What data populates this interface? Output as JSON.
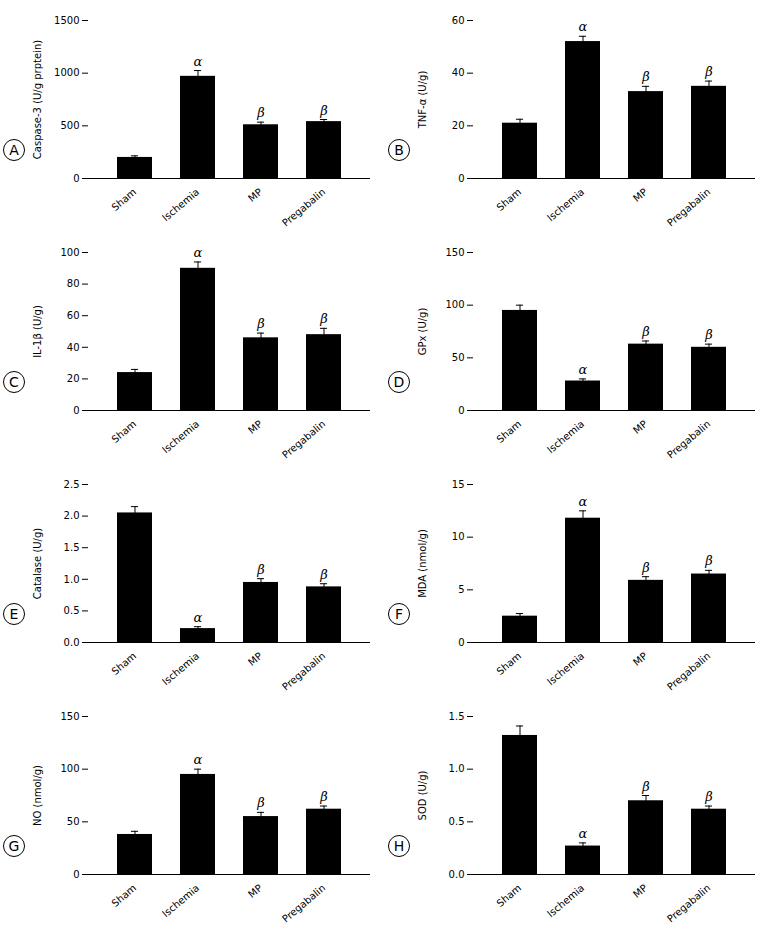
{
  "chart_data": [
    {
      "type": "bar",
      "title": "A",
      "ylabel": "Caspase-3 (U/g prptein)",
      "categories": [
        "Sham",
        "Ischemia",
        "MP",
        "Pregabalin"
      ],
      "values": [
        200,
        970,
        510,
        540
      ],
      "errors": [
        15,
        55,
        25,
        20
      ],
      "annotations": [
        {
          "category": "Ischemia",
          "text": "α"
        },
        {
          "category": "MP",
          "text": "β"
        },
        {
          "category": "Pregabalin",
          "text": "β"
        }
      ],
      "color": "#000000",
      "ylim": [
        0,
        1500
      ],
      "yticks": [
        0,
        500,
        1000,
        1500
      ],
      "grid": false
    },
    {
      "type": "bar",
      "title": "B",
      "ylabel": "TNF-α (U/g)",
      "categories": [
        "Sham",
        "Ischemia",
        "MP",
        "Pregabalin"
      ],
      "values": [
        21,
        52,
        33,
        35
      ],
      "errors": [
        1.5,
        2,
        2,
        2
      ],
      "annotations": [
        {
          "category": "Ischemia",
          "text": "α"
        },
        {
          "category": "MP",
          "text": "β"
        },
        {
          "category": "Pregabalin",
          "text": "β"
        }
      ],
      "color": "#000000",
      "ylim": [
        0,
        60
      ],
      "yticks": [
        0,
        20,
        40,
        60
      ],
      "grid": false
    },
    {
      "type": "bar",
      "title": "C",
      "ylabel": "IL-1β (U/g)",
      "categories": [
        "Sham",
        "Ischemia",
        "MP",
        "Pregabalin"
      ],
      "values": [
        24,
        90,
        46,
        48
      ],
      "errors": [
        2,
        4,
        3,
        4
      ],
      "annotations": [
        {
          "category": "Ischemia",
          "text": "α"
        },
        {
          "category": "MP",
          "text": "β"
        },
        {
          "category": "Pregabalin",
          "text": "β"
        }
      ],
      "color": "#000000",
      "ylim": [
        0,
        100
      ],
      "yticks": [
        0,
        20,
        40,
        60,
        80,
        100
      ],
      "grid": false
    },
    {
      "type": "bar",
      "title": "D",
      "ylabel": "GPx (U/g)",
      "categories": [
        "Sham",
        "Ischemia",
        "MP",
        "Pregabalin"
      ],
      "values": [
        95,
        28,
        63,
        60
      ],
      "errors": [
        5,
        2,
        3,
        3
      ],
      "annotations": [
        {
          "category": "Ischemia",
          "text": "α"
        },
        {
          "category": "MP",
          "text": "β"
        },
        {
          "category": "Pregabalin",
          "text": "β"
        }
      ],
      "color": "#000000",
      "ylim": [
        0,
        150
      ],
      "yticks": [
        0,
        50,
        100,
        150
      ],
      "grid": false
    },
    {
      "type": "bar",
      "title": "E",
      "ylabel": "Catalase (U/g)",
      "categories": [
        "Sham",
        "Ischemia",
        "MP",
        "Pregabalin"
      ],
      "values": [
        2.05,
        0.22,
        0.95,
        0.88
      ],
      "errors": [
        0.1,
        0.03,
        0.06,
        0.05
      ],
      "annotations": [
        {
          "category": "Ischemia",
          "text": "α"
        },
        {
          "category": "MP",
          "text": "β"
        },
        {
          "category": "Pregabalin",
          "text": "β"
        }
      ],
      "color": "#000000",
      "ylim": [
        0,
        2.5
      ],
      "yticks": [
        {
          "value": 0,
          "label": "0.0"
        },
        0.5,
        {
          "value": 1,
          "label": "1.0"
        },
        1.5,
        {
          "value": 2,
          "label": "2.0"
        },
        2.5
      ],
      "grid": false
    },
    {
      "type": "bar",
      "title": "F",
      "ylabel": "MDA (nmol/g)",
      "categories": [
        "Sham",
        "Ischemia",
        "MP",
        "Pregabalin"
      ],
      "values": [
        2.5,
        11.8,
        5.9,
        6.5
      ],
      "errors": [
        0.25,
        0.7,
        0.35,
        0.35
      ],
      "annotations": [
        {
          "category": "Ischemia",
          "text": "α"
        },
        {
          "category": "MP",
          "text": "β"
        },
        {
          "category": "Pregabalin",
          "text": "β"
        }
      ],
      "color": "#000000",
      "ylim": [
        0,
        15
      ],
      "yticks": [
        0,
        5,
        10,
        15
      ],
      "grid": false
    },
    {
      "type": "bar",
      "title": "G",
      "ylabel": "NO (nmol/g)",
      "categories": [
        "Sham",
        "Ischemia",
        "MP",
        "Pregabalin"
      ],
      "values": [
        38,
        95,
        55,
        62
      ],
      "errors": [
        3,
        5,
        4,
        3
      ],
      "annotations": [
        {
          "category": "Ischemia",
          "text": "α"
        },
        {
          "category": "MP",
          "text": "β"
        },
        {
          "category": "Pregabalin",
          "text": "β"
        }
      ],
      "color": "#000000",
      "ylim": [
        0,
        150
      ],
      "yticks": [
        0,
        50,
        100,
        150
      ],
      "grid": false
    },
    {
      "type": "bar",
      "title": "H",
      "ylabel": "SOD (U/g)",
      "categories": [
        "Sham",
        "Ischemia",
        "MP",
        "Pregabalin"
      ],
      "values": [
        1.32,
        0.27,
        0.7,
        0.62
      ],
      "errors": [
        0.09,
        0.03,
        0.05,
        0.03
      ],
      "annotations": [
        {
          "category": "Ischemia",
          "text": "α"
        },
        {
          "category": "MP",
          "text": "β"
        },
        {
          "category": "Pregabalin",
          "text": "β"
        }
      ],
      "color": "#000000",
      "ylim": [
        0,
        1.5
      ],
      "yticks": [
        {
          "value": 0,
          "label": "0.0"
        },
        0.5,
        {
          "value": 1,
          "label": "1.0"
        },
        1.5
      ],
      "grid": false
    }
  ]
}
